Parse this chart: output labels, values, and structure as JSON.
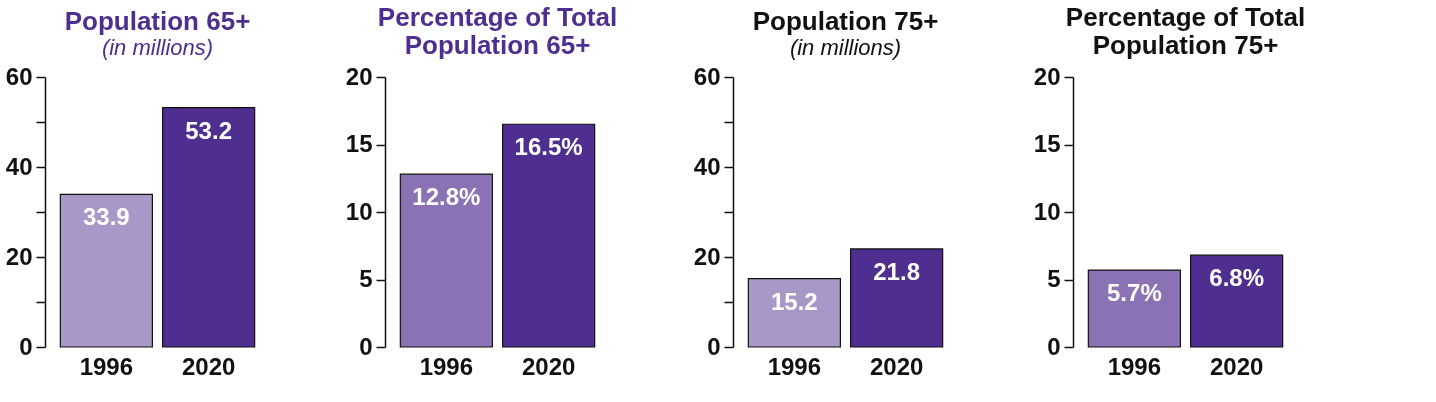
{
  "chart_data": [
    {
      "type": "bar",
      "title": "Population 65+",
      "subtitle": "(in millions)",
      "categories": [
        "1996",
        "2020"
      ],
      "values": [
        33.9,
        53.2
      ],
      "colors": [
        "#a898c8",
        "#4e2f8f"
      ],
      "value_labels": [
        "33.9",
        "53.2"
      ],
      "ylim": [
        0,
        60
      ],
      "yticks": [
        0,
        {
          "value": 10,
          "label": null
        },
        20,
        {
          "value": 30,
          "label": null
        },
        40,
        {
          "value": 50,
          "label": null
        },
        60
      ],
      "grid": false
    },
    {
      "type": "bar",
      "title": "Percentage of Total Population 65+",
      "categories": [
        "1996",
        "2020"
      ],
      "values": [
        12.8,
        16.5
      ],
      "colors": [
        "#8a72b4",
        "#4e2f8f"
      ],
      "value_labels": [
        "12.8%",
        "16.5%"
      ],
      "ylim": [
        0,
        20
      ],
      "yticks": [
        0,
        5,
        10,
        15,
        20
      ],
      "grid": false
    },
    {
      "type": "bar",
      "title": "Population 75+",
      "subtitle": "(in millions)",
      "categories": [
        "1996",
        "2020"
      ],
      "values": [
        15.2,
        21.8
      ],
      "colors": [
        "#a898c8",
        "#4e2f8f"
      ],
      "value_labels": [
        "15.2",
        "21.8"
      ],
      "ylim": [
        0,
        60
      ],
      "yticks": [
        0,
        {
          "value": 10,
          "label": null
        },
        20,
        {
          "value": 30,
          "label": null
        },
        40,
        {
          "value": 50,
          "label": null
        },
        60
      ],
      "grid": false
    },
    {
      "type": "bar",
      "title": "Percentage of Total Population 75+",
      "categories": [
        "1996",
        "2020"
      ],
      "values": [
        5.7,
        6.8
      ],
      "colors": [
        "#8a72b4",
        "#4e2f8f"
      ],
      "value_labels": [
        "5.7%",
        "6.8%"
      ],
      "ylim": [
        0,
        20
      ],
      "yticks": [
        0,
        5,
        10,
        15,
        20
      ],
      "grid": false
    }
  ]
}
